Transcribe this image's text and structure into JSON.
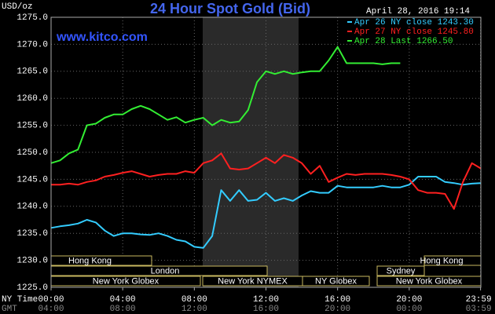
{
  "chart_data": {
    "type": "line",
    "title": "24 Hour Spot Gold (Bid)",
    "website": "www.kitco.com",
    "y_label": "USD/oz",
    "timestamp": "April 28, 2016 19:14",
    "x_axis_label": "NY Time",
    "x2_axis_label": "GMT",
    "x": [
      0,
      0.5,
      1,
      1.5,
      2,
      2.5,
      3,
      3.5,
      4,
      4.5,
      5,
      5.5,
      6,
      6.5,
      7,
      7.5,
      8,
      8.5,
      9,
      9.5,
      10,
      10.5,
      11,
      11.5,
      12,
      12.5,
      13,
      13.5,
      14,
      14.5,
      15,
      15.5,
      16,
      16.5,
      17,
      17.5,
      18,
      18.5,
      19,
      19.5,
      20,
      20.5,
      21,
      21.5,
      22,
      22.5,
      23,
      23.5,
      24
    ],
    "xlim": [
      0,
      24
    ],
    "xticks": [
      {
        "value": 0,
        "label": "00:00"
      },
      {
        "value": 4,
        "label": "04:00"
      },
      {
        "value": 8,
        "label": "08:00"
      },
      {
        "value": 12,
        "label": "12:00"
      },
      {
        "value": 16,
        "label": "16:00"
      },
      {
        "value": 20,
        "label": "20:00"
      },
      {
        "value": 23.983,
        "label": "23:59"
      }
    ],
    "xticks_gmt": [
      {
        "value": 0,
        "label": "04:00"
      },
      {
        "value": 4,
        "label": "08:00"
      },
      {
        "value": 8,
        "label": "12:00"
      },
      {
        "value": 12,
        "label": "16:00"
      },
      {
        "value": 16,
        "label": "20:00"
      },
      {
        "value": 20,
        "label": "00:00"
      },
      {
        "value": 23.983,
        "label": "03:59"
      }
    ],
    "ylim": [
      1225,
      1275
    ],
    "yticks": [
      {
        "value": 1225,
        "label": "1225.0"
      },
      {
        "value": 1230,
        "label": "1230.0"
      },
      {
        "value": 1235,
        "label": "1235.0"
      },
      {
        "value": 1240,
        "label": "1240.0"
      },
      {
        "value": 1245,
        "label": "1245.0"
      },
      {
        "value": 1250,
        "label": "1250.0"
      },
      {
        "value": 1255,
        "label": "1255.0"
      },
      {
        "value": 1260,
        "label": "1260.0"
      },
      {
        "value": 1265,
        "label": "1265.0"
      },
      {
        "value": 1270,
        "label": "1270.0"
      },
      {
        "value": 1275,
        "label": "1275.0"
      }
    ],
    "grid": true,
    "legend": "top-right",
    "series": [
      {
        "name": "Apr 26 NY close 1243.30",
        "color": "#33ccff",
        "values": [
          1236,
          1236.3,
          1236.5,
          1236.8,
          1237.5,
          1237,
          1235.5,
          1234.5,
          1235,
          1235,
          1234.8,
          1234.7,
          1235,
          1234.5,
          1233.8,
          1233.5,
          1232.5,
          1232.3,
          1234.5,
          1243,
          1241,
          1243,
          1241,
          1241.2,
          1242.5,
          1241,
          1241.5,
          1241,
          1242,
          1242.8,
          1242.5,
          1242.5,
          1243.8,
          1243.5,
          1243.5,
          1243.5,
          1243.5,
          1243.8,
          1243.5,
          1243.5,
          1244,
          1245.5,
          1245.5,
          1245.5,
          1244.5,
          1244.3,
          1244,
          1244.2,
          1244.3
        ]
      },
      {
        "name": "Apr 27 NY close 1245.80",
        "color": "#ff2020",
        "values": [
          1244,
          1244,
          1244.2,
          1244,
          1244.5,
          1244.8,
          1245.5,
          1245.8,
          1246.2,
          1246.5,
          1246,
          1245.5,
          1245.8,
          1246,
          1246,
          1246.5,
          1246.2,
          1248,
          1248.5,
          1249.8,
          1247,
          1246.8,
          1247,
          1248,
          1249,
          1248,
          1249.5,
          1249,
          1248,
          1246,
          1247.5,
          1244.5,
          1245.3,
          1246,
          1245.8,
          1246,
          1246,
          1246,
          1245.8,
          1245.5,
          1245,
          1243,
          1242.5,
          1242.5,
          1242.3,
          1239.5,
          1244.5,
          1248,
          1247
        ]
      },
      {
        "name": "Apr 28 Last 1266.50",
        "color": "#33ee33",
        "values": [
          1248,
          1248.5,
          1249.8,
          1250.5,
          1255,
          1255.3,
          1256.4,
          1257,
          1257,
          1258,
          1258.6,
          1258,
          1257,
          1256,
          1256.5,
          1255.5,
          1256,
          1256.4,
          1255,
          1256,
          1255.5,
          1255.7,
          1257.8,
          1263,
          1265,
          1264.5,
          1265,
          1264.5,
          1264.8,
          1265,
          1265,
          1267,
          1269.5,
          1266.5,
          1266.5,
          1266.5,
          1266.5,
          1266.3,
          1266.5,
          1266.5,
          null,
          null,
          null,
          null,
          null,
          null,
          null,
          null,
          null
        ]
      }
    ],
    "sessions": [
      "Hong Kong",
      "London",
      "New York Globex",
      "New York NYMEX",
      "NY Globex",
      "Hong Kong",
      "Sydney",
      "New York Globex"
    ]
  }
}
